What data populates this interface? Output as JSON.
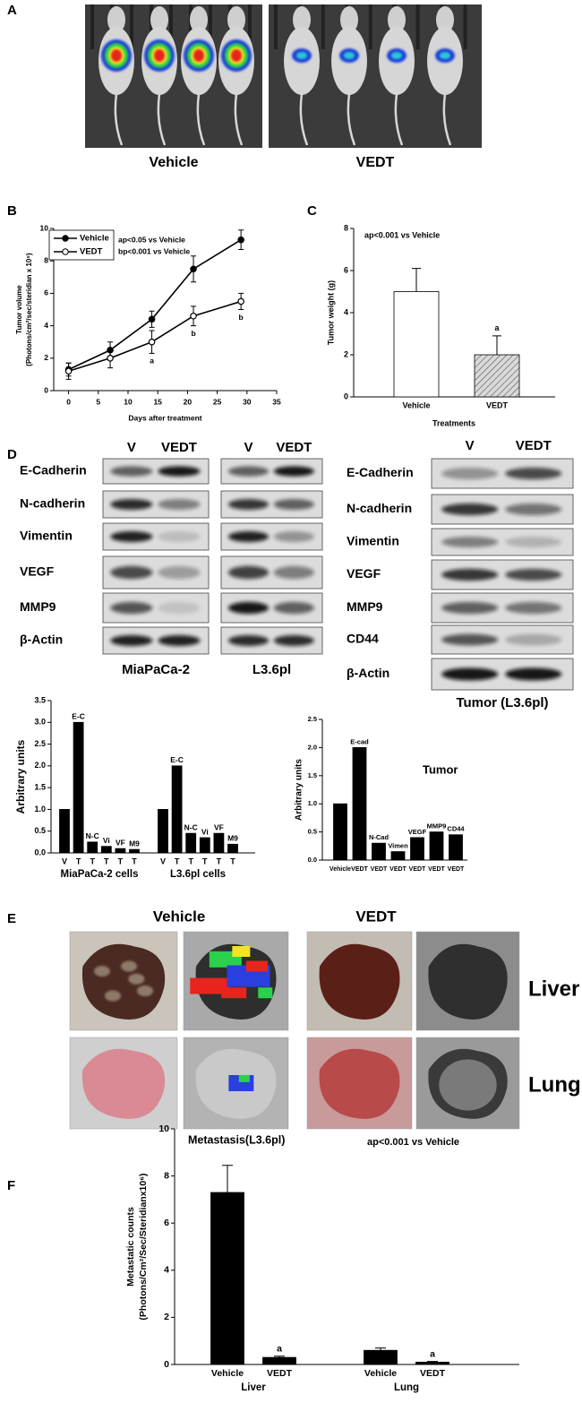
{
  "panel_labels": [
    "A",
    "B",
    "C",
    "D",
    "E",
    "F"
  ],
  "panel_a": {
    "captions": [
      "Vehicle",
      "VEDT"
    ]
  },
  "blots": {
    "left": {
      "rows": [
        "E-Cadherin",
        "N-cadherin",
        "Vimentin",
        "VEGF",
        "MMP9",
        "β-Actin"
      ],
      "images": [
        {
          "caption": "MiaPaCa-2",
          "headers": [
            "V",
            "VEDT"
          ]
        },
        {
          "caption": "L3.6pl",
          "headers": [
            "V",
            "VEDT"
          ]
        }
      ]
    },
    "right": {
      "rows": [
        "E-Cadherin",
        "N-cadherin",
        "Vimentin",
        "VEGF",
        "MMP9",
        "CD44",
        "β-Actin"
      ],
      "headers": [
        "V",
        "VEDT"
      ],
      "caption": "Tumor (L3.6pl)"
    }
  },
  "panel_e": {
    "columns": [
      "Vehicle",
      "VEDT"
    ],
    "rows": [
      "Liver",
      "Lung"
    ]
  },
  "chart_data": [
    {
      "type": "line",
      "y_label": [
        "Tumor volume",
        "(Photons/cm²/sec/steridian x 10⁶)"
      ],
      "x_label": "Days after treatment",
      "notes": [
        "ap<0.05  vs Vehicle",
        "bp<0.001 vs Vehicle"
      ],
      "x": [
        0,
        7,
        14,
        21,
        29
      ],
      "series": [
        {
          "name": "Vehicle",
          "color": "#000000",
          "marker": "filled",
          "values": [
            1.3,
            2.5,
            4.4,
            7.5,
            9.3
          ],
          "errors": [
            0.4,
            0.5,
            0.5,
            0.8,
            0.6
          ]
        },
        {
          "name": "VEDT",
          "color": "#000000",
          "marker": "open",
          "values": [
            1.2,
            2.0,
            3.0,
            4.6,
            5.5
          ],
          "errors": [
            0.5,
            0.6,
            0.7,
            0.6,
            0.5
          ],
          "annotations": [
            null,
            null,
            "a",
            "b",
            "b"
          ]
        }
      ],
      "xlim": [
        -2.5,
        35
      ],
      "ylim": [
        0,
        10
      ],
      "xticks": [
        0,
        5,
        10,
        15,
        20,
        25,
        30,
        35
      ],
      "yticks": [
        0,
        2,
        4,
        6,
        8,
        10
      ]
    },
    {
      "type": "bar",
      "y_label": "Tumor weight (g)",
      "x_label": "Treatments",
      "notes": [
        "ap<0.001 vs Vehicle"
      ],
      "categories": [
        "Vehicle",
        "VEDT"
      ],
      "values": [
        5.0,
        2.0
      ],
      "errors": [
        1.1,
        0.9
      ],
      "annotations": [
        null,
        "a"
      ],
      "colors": [
        "#ffffff",
        "#d9d9d9"
      ],
      "hatched": [
        false,
        true
      ],
      "ylim": [
        0,
        8
      ],
      "yticks": [
        0,
        2,
        4,
        6,
        8
      ]
    },
    {
      "type": "bar",
      "y_label": "Arbitrary units",
      "categories": [
        "V",
        "T",
        "T",
        "T",
        "T",
        "T",
        "V",
        "T",
        "T",
        "T",
        "T",
        "T"
      ],
      "values": [
        1.0,
        3.0,
        0.25,
        0.15,
        0.1,
        0.08,
        1.0,
        2.0,
        0.45,
        0.35,
        0.45,
        0.2
      ],
      "bar_labels": [
        null,
        "E-C",
        "N-C",
        "Vi",
        "VF",
        "M9",
        null,
        "E-C",
        "N-C",
        "Vi",
        "VF",
        "M9"
      ],
      "group_labels": [
        "MiaPaCa-2 cells",
        "L3.6pl cells"
      ],
      "color": "#000000",
      "ylim": [
        0,
        3.5
      ],
      "yticks": [
        {
          "value": 0,
          "label": "0.0"
        },
        0.5,
        {
          "value": 1,
          "label": "1.0"
        },
        1.5,
        {
          "value": 2,
          "label": "2.0"
        },
        2.5,
        {
          "value": 3,
          "label": "3.0"
        },
        3.5
      ]
    },
    {
      "type": "bar",
      "y_label": "Arbitrary units",
      "title": "Tumor",
      "categories": [
        "Vehicle",
        "VEDT",
        "VEDT",
        "VEDT",
        "VEDT",
        "VEDT",
        "VEDT"
      ],
      "values": [
        1.0,
        2.0,
        0.3,
        0.15,
        0.4,
        0.5,
        0.45
      ],
      "bar_labels": [
        null,
        "E-cad",
        "N-Cad",
        "Vimen",
        "VEGF",
        "MMP9",
        "CD44"
      ],
      "color": "#000000",
      "ylim": [
        0,
        2.5
      ],
      "yticks": [
        {
          "value": 0,
          "label": "0.0"
        },
        0.5,
        {
          "value": 1,
          "label": "1.0"
        },
        1.5,
        {
          "value": 2,
          "label": "2.0"
        },
        2.5
      ]
    },
    {
      "type": "bar",
      "title": "Metastasis(L3.6pl)",
      "notes": [
        "ap<0.001 vs Vehicle"
      ],
      "y_label": [
        "Metastatic counts",
        "(Photons/Cm²/Sec/Steridianx10⁶)"
      ],
      "categories": [
        "Vehicle",
        "VEDT",
        "Vehicle",
        "VEDT"
      ],
      "group_labels": [
        "Liver",
        "Lung"
      ],
      "values": [
        7.3,
        0.3,
        0.6,
        0.1
      ],
      "errors": [
        1.15,
        0.05,
        0.1,
        0.03
      ],
      "annotations": [
        null,
        "a",
        null,
        "a"
      ],
      "color": "#000000",
      "ylim": [
        0,
        10
      ],
      "yticks": [
        0,
        2,
        4,
        6,
        8,
        10
      ]
    }
  ]
}
